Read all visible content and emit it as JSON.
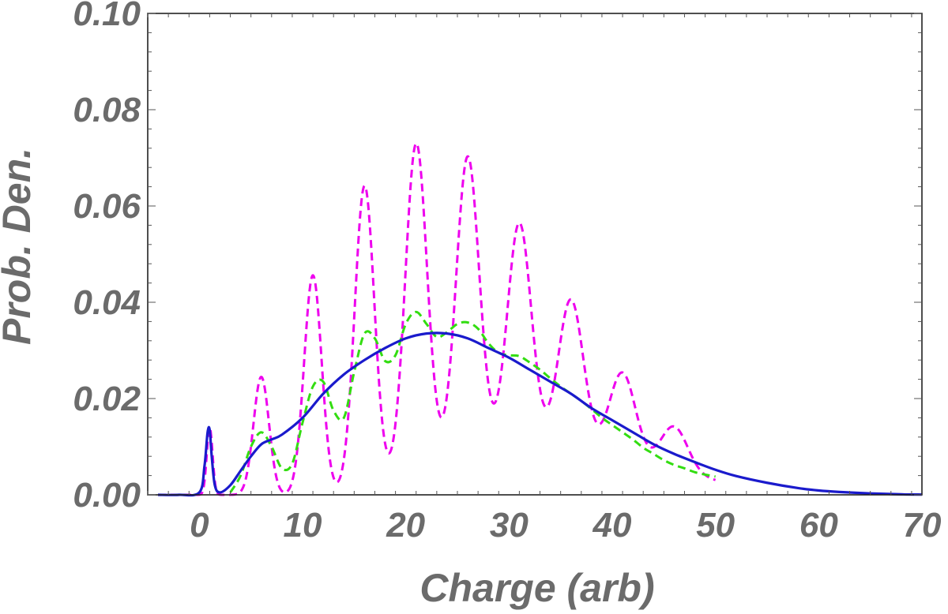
{
  "chart_data": {
    "type": "line",
    "title": "",
    "xlabel": "Charge (arb)",
    "ylabel": "Prob. Den.",
    "xlim": [
      -5,
      70
    ],
    "ylim": [
      0,
      0.1
    ],
    "x_ticks": [
      0,
      10,
      20,
      30,
      40,
      50,
      60,
      70
    ],
    "x_tick_labels": [
      "0",
      "10",
      "20",
      "30",
      "40",
      "50",
      "60",
      "70"
    ],
    "y_ticks": [
      0,
      0.02,
      0.04,
      0.06,
      0.08,
      0.1
    ],
    "y_tick_labels": [
      "0.00",
      "0.02",
      "0.04",
      "0.06",
      "0.08",
      "0.10"
    ],
    "grid": false,
    "legend": "none",
    "series": [
      {
        "color": "#1a1acc",
        "dash": "solid",
        "x": [
          -4,
          -2,
          0,
          0.5,
          0.8,
          1.0,
          1.2,
          1.5,
          2,
          3,
          4,
          5,
          6,
          7,
          8,
          10,
          12,
          14,
          16,
          18,
          20,
          22,
          24,
          26,
          28,
          30,
          32,
          34,
          36,
          38,
          40,
          42,
          44,
          46,
          48,
          50,
          52,
          55,
          58,
          60,
          62,
          65,
          68,
          70
        ],
        "y": [
          0,
          0,
          0.0005,
          0.006,
          0.013,
          0.0135,
          0.008,
          0.002,
          0.0005,
          0.002,
          0.005,
          0.008,
          0.0105,
          0.0115,
          0.0125,
          0.016,
          0.021,
          0.025,
          0.028,
          0.0305,
          0.0325,
          0.0335,
          0.0335,
          0.0325,
          0.0305,
          0.0285,
          0.026,
          0.0235,
          0.021,
          0.018,
          0.0155,
          0.013,
          0.0105,
          0.0085,
          0.0068,
          0.0052,
          0.0039,
          0.0025,
          0.0014,
          0.0009,
          0.0006,
          0.0003,
          0.0001,
          5e-05
        ]
      },
      {
        "color": "#33dd11",
        "dash": "dashed",
        "x": [
          3,
          4,
          5,
          6,
          7,
          8,
          9,
          10,
          11,
          12,
          13,
          14,
          15,
          16,
          17,
          18,
          19,
          20,
          21,
          22,
          23,
          24,
          25,
          26,
          27,
          28,
          29,
          30,
          31,
          32,
          33,
          34,
          35,
          36,
          37,
          38,
          39,
          40,
          41,
          42,
          43,
          44,
          45,
          46,
          47,
          48,
          49,
          50
        ],
        "y": [
          0.0005,
          0.004,
          0.01,
          0.013,
          0.01,
          0.0055,
          0.0065,
          0.015,
          0.0225,
          0.0235,
          0.0175,
          0.016,
          0.0255,
          0.0335,
          0.0325,
          0.0278,
          0.029,
          0.0355,
          0.038,
          0.0355,
          0.0328,
          0.0338,
          0.0355,
          0.0358,
          0.0345,
          0.0315,
          0.0295,
          0.029,
          0.0288,
          0.0275,
          0.026,
          0.0242,
          0.0225,
          0.021,
          0.0195,
          0.0178,
          0.016,
          0.0145,
          0.013,
          0.0115,
          0.0098,
          0.0085,
          0.0072,
          0.0062,
          0.0055,
          0.0047,
          0.0042,
          0.0038
        ]
      },
      {
        "color": "#ee00ee",
        "dash": "dashed",
        "peaks": [
          {
            "x": 1.0,
            "y": 0.014,
            "sigma": 0.28
          },
          {
            "x": 6.0,
            "y": 0.0245,
            "sigma": 0.75
          },
          {
            "x": 11.0,
            "y": 0.0455,
            "sigma": 0.85
          },
          {
            "x": 16.0,
            "y": 0.063,
            "sigma": 0.95
          },
          {
            "x": 21.0,
            "y": 0.068,
            "sigma": 1.05
          },
          {
            "x": 26.0,
            "y": 0.061,
            "sigma": 1.1
          },
          {
            "x": 31.0,
            "y": 0.046,
            "sigma": 1.15
          },
          {
            "x": 36.0,
            "y": 0.0305,
            "sigma": 1.2
          },
          {
            "x": 41.0,
            "y": 0.0175,
            "sigma": 1.25
          },
          {
            "x": 46.0,
            "y": 0.0092,
            "sigma": 1.3
          }
        ],
        "baseline_x": [
          5,
          10,
          15,
          20,
          25,
          30,
          35,
          40,
          45,
          50
        ],
        "baseline_y": [
          0,
          0,
          0.0005,
          0.004,
          0.009,
          0.0105,
          0.0105,
          0.0085,
          0.0055,
          0.003
        ],
        "x_range": [
          -4,
          50
        ]
      }
    ]
  }
}
